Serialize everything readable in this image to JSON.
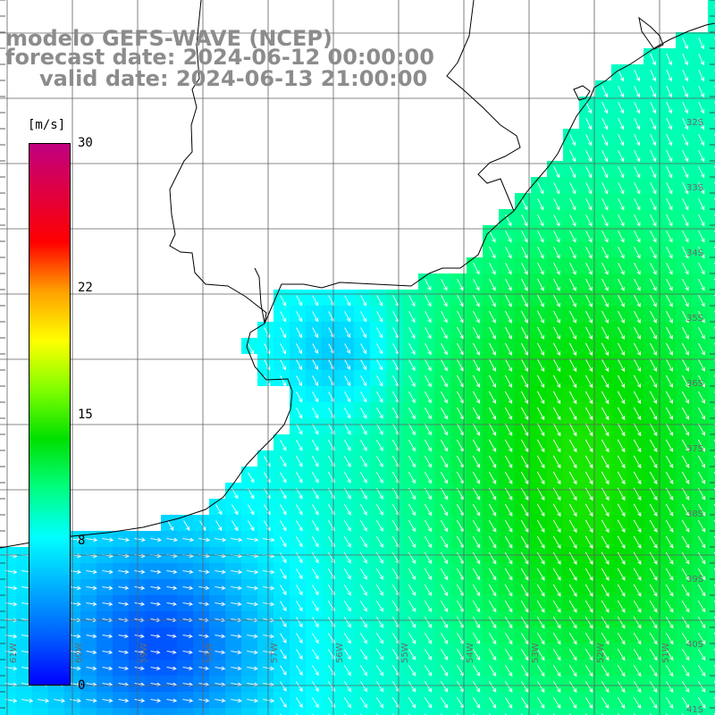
{
  "title": {
    "line1": "modelo GEFS-WAVE (NCEP)",
    "line2": "forecast date: 2024-06-12 00:00:00",
    "line3": "valid date: 2024-06-13 21:00:00"
  },
  "colorbar": {
    "unit": "[m/s]",
    "ticks": [
      {
        "label": "30",
        "value": 30
      },
      {
        "label": "22",
        "value": 22
      },
      {
        "label": "15",
        "value": 15
      },
      {
        "label": "8",
        "value": 8
      },
      {
        "label": "0",
        "value": 0
      }
    ],
    "colors": [
      "#0000ff",
      "#0060ff",
      "#00b0ff",
      "#00ffff",
      "#00ff80",
      "#00e000",
      "#80ff00",
      "#ffff00",
      "#ffa000",
      "#ff0000",
      "#e00040",
      "#c00080"
    ]
  },
  "grid": {
    "lon_labels": [
      "61W",
      "60W",
      "59W",
      "58W",
      "57W",
      "56W",
      "55W",
      "54W",
      "53W",
      "52W",
      "51W"
    ],
    "lat_labels": [
      "32S",
      "33S",
      "34S",
      "35S",
      "36S",
      "37S",
      "38S",
      "39S",
      "40S",
      "41S"
    ]
  },
  "colors": {
    "title": "#8c8c8c",
    "land": "#ffffff",
    "coast": "#000000",
    "grid": "#606060",
    "arrow": "#ffffff"
  }
}
